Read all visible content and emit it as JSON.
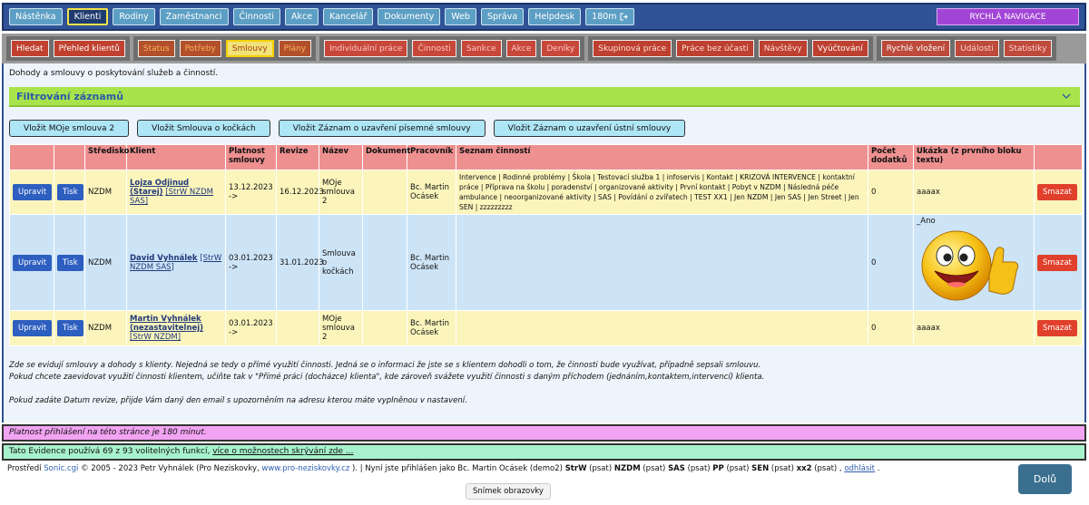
{
  "top_nav": {
    "items": [
      "Nástěnka",
      "Klienti",
      "Rodiny",
      "Zaměstnanci",
      "Činnosti",
      "Akce",
      "Kancelář",
      "Dokumenty",
      "Web",
      "Správa",
      "Helpdesk",
      "180m"
    ],
    "active_index": 1,
    "quick_nav": "RYCHLÁ NAVIGACE"
  },
  "sub_nav": {
    "groups": [
      [
        "Hledat",
        "Přehled klientů"
      ],
      [
        "Status",
        "Potřeby",
        "Smlouvy",
        "Plány"
      ],
      [
        "Individuální práce",
        "Činnosti",
        "Sankce",
        "Akce",
        "Deníky"
      ],
      [
        "Skupinová práce",
        "Práce bez účasti",
        "Návštěvy",
        "Vyúčtování"
      ],
      [
        "Rychlé vložení",
        "Události",
        "Statistiky"
      ]
    ],
    "active": [
      1,
      2
    ]
  },
  "description": "Dohody a smlouvy o poskytování služeb a činností.",
  "filter": "Filtrování záznamů",
  "insert_buttons": [
    "Vložit MOje smlouva 2",
    "Vložit Smlouva o kočkách",
    "Vložit Záznam o uzavření písemné smlouvy",
    "Vložit Záznam o uzavření ústní smlouvy"
  ],
  "table": {
    "headers": {
      "center": "Středisko",
      "client": "Klient",
      "validity": "Platnost smlouvy",
      "revision": "Revize",
      "name": "Název",
      "document": "Dokument",
      "worker": "Pracovník",
      "activities": "Seznam činností",
      "amendments": "Počet dodatků",
      "sample": "Ukázka (z prvního bloku textu)"
    },
    "rows": [
      {
        "edit": "Upravit",
        "print": "Tisk",
        "center": "NZDM",
        "client_name": "Lojza Odjinud (Starej)",
        "client_tag": "[StrW NZDM SAS]",
        "validity": "13.12.2023 ->",
        "revision": "16.12.2023",
        "name": "MOje smlouva 2",
        "worker": "Bc. Martin Ocásek",
        "activities": "Intervence | Rodinné problémy | Škola | Testovací služba 1 | infoservis | Kontakt | KRIZOVÁ INTERVENCE | kontaktní práce | Příprava na školu | poradenství | organizované aktivity | První kontakt | Pobyt v NZDM | Následná péče ambulance | neoorganizované aktivity | SAS | Povídání o zvířatech | TEST XX1 | Jen NZDM | Jen SAS | Jen Street | Jen SEN | zzzzzzzzz",
        "amendments": 0,
        "sample": "aaaax",
        "delete": "Smazat"
      },
      {
        "edit": "Upravit",
        "print": "Tisk",
        "center": "NZDM",
        "client_name": "David Vyhnálek",
        "client_tag": "[StrW NZDM SAS]",
        "validity": "03.01.2023 ->",
        "revision": "31.01.2023",
        "name": "Smlouva o kočkách",
        "worker": "Bc. Martin Ocásek",
        "amendments": 0,
        "sample": "_Ano",
        "delete": "Smazat"
      },
      {
        "edit": "Upravit",
        "print": "Tisk",
        "center": "NZDM",
        "client_name": "Martin Vyhnálek (nezastavitelnej)",
        "client_tag": "[StrW NZDM]",
        "validity": "03.01.2023 ->",
        "name": "MOje smlouva 2",
        "worker": "Bc. Martin Ocásek",
        "amendments": 0,
        "sample": "aaaax",
        "delete": "Smazat"
      }
    ]
  },
  "notes": [
    "Zde se evidují smlouvy a dohody s klienty. Nejedná se tedy o přímé využití činnosti. Jedná se o informaci že jste se s klientem dohodli o tom, že činnosti bude využívat, případně sepsali smlouvu.",
    "Pokud chcete zaevidovat využití činnosti klientem, učiňte tak v \"Přímé práci (docházce) klienta\", kde zároveň svážete využití činnosti s daným příchodem (jednáním,kontaktem,intervencí) klienta.",
    "Pokud zadáte Datum revize, přijde Vám daný den email s upozorněním na adresu kterou máte vyplněnou v nastavení."
  ],
  "login_validity": "Platnost přihlášení na této stránce je 180 minut.",
  "features": {
    "text": "Tato Evidence používá 69 z 93 volitelných funkcí,",
    "link": "více o možnostech skrývání zde ..."
  },
  "footer": [
    {
      "text": "Prostředí"
    },
    {
      "text": "Sonic.cgi",
      "link": true
    },
    {
      "text": "© 2005 - 2023 Petr Vyhnálek (Pro Neziskovky,"
    },
    {
      "text": "www.pro-neziskovky.cz",
      "link": true
    },
    {
      "text": "). | Nyní jste přihlášen jako Bc. Martin Ocásek (demo2)"
    },
    {
      "text": "StrW",
      "bold": true
    },
    {
      "text": "(psat)"
    },
    {
      "text": "NZDM",
      "bold": true
    },
    {
      "text": "(psat)"
    },
    {
      "text": "SAS",
      "bold": true
    },
    {
      "text": "(psat)"
    },
    {
      "text": "PP",
      "bold": true
    },
    {
      "text": "(psat)"
    },
    {
      "text": "SEN",
      "bold": true
    },
    {
      "text": "(psat)"
    },
    {
      "text": "xx2",
      "bold": true
    },
    {
      "text": "(psat) ,"
    },
    {
      "text": "odhlásit",
      "link": true,
      "underline": true
    },
    {
      "text": "."
    }
  ],
  "down_button": "Dolů",
  "screenshot_label": "Snímek obrazovky"
}
